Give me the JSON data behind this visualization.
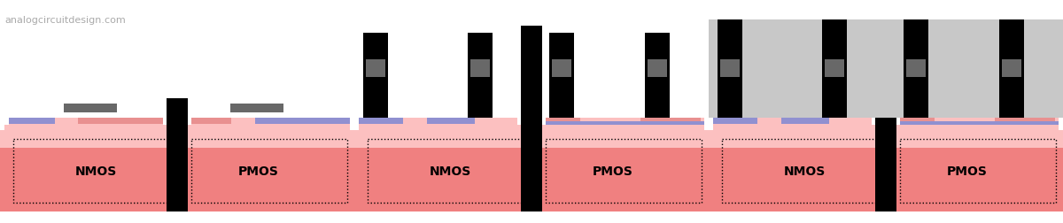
{
  "bg_color": "#000000",
  "panel_bg": "#ffffff",
  "substrate_dark": "#f08080",
  "substrate_light": "#fcc0c0",
  "oxide_blue": "#9090d0",
  "oxide_pink": "#e89090",
  "poly_dark": "#505050",
  "poly_medium": "#686868",
  "black": "#000000",
  "light_gray": "#c8c8c8",
  "watermark": "analogcircuitdesign.com",
  "nmos_label": "NMOS",
  "pmos_label": "PMOS"
}
